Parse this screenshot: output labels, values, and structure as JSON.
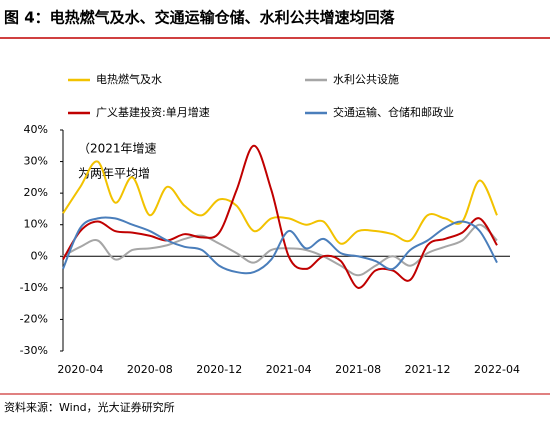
{
  "chart_data": {
    "type": "line",
    "title": "图 4：电热燃气及水、交通运输仓储、水利公共增速均回落",
    "source": "资料来源：Wind，光大证券研究所",
    "annotation": [
      "（2021年增速",
      "为两年平均增"
    ],
    "x": [
      "2020-03",
      "2020-04",
      "2020-05",
      "2020-06",
      "2020-07",
      "2020-08",
      "2020-09",
      "2020-10",
      "2020-11",
      "2020-12",
      "2021-01",
      "2021-02",
      "2021-03",
      "2021-04",
      "2021-05",
      "2021-06",
      "2021-07",
      "2021-08",
      "2021-09",
      "2021-10",
      "2021-11",
      "2021-12",
      "2022-01",
      "2022-02",
      "2022-03",
      "2022-04"
    ],
    "xticks": [
      "2020-04",
      "2020-08",
      "2020-12",
      "2021-04",
      "2021-08",
      "2021-12",
      "2022-04"
    ],
    "ylim": [
      -30,
      40
    ],
    "yticks": [
      {
        "value": -30,
        "label": "-30%"
      },
      {
        "value": -20,
        "label": "-20%"
      },
      {
        "value": -10,
        "label": "-10%"
      },
      {
        "value": 0,
        "label": "0%"
      },
      {
        "value": 10,
        "label": "10%"
      },
      {
        "value": 20,
        "label": "20%"
      },
      {
        "value": 30,
        "label": "30%"
      },
      {
        "value": 40,
        "label": "40%"
      }
    ],
    "series": [
      {
        "name": "电热燃气及水",
        "color": "#f2c200",
        "values": [
          13.6,
          22,
          30,
          17,
          25,
          13,
          22,
          16,
          13,
          18,
          16,
          8,
          12,
          12,
          10,
          11,
          4,
          8,
          8,
          7,
          5,
          13,
          12,
          11,
          24,
          13
        ]
      },
      {
        "name": "水利公共设施",
        "color": "#a6a6a6",
        "values": [
          0,
          3,
          5,
          -1,
          2,
          2.5,
          3.5,
          5.5,
          6.5,
          4,
          1,
          -2,
          2,
          2.5,
          2,
          0,
          -3,
          -6,
          -3,
          0,
          -3,
          1,
          3,
          5,
          10,
          5
        ]
      },
      {
        "name": "广义基建投资:单月增速",
        "color": "#c00000",
        "values": [
          -1,
          8,
          11,
          8,
          7.5,
          6.5,
          5,
          7,
          6,
          7.5,
          21,
          35,
          21,
          0,
          -4,
          0,
          -1.5,
          -10,
          -4.5,
          -4.5,
          -7.5,
          3.5,
          5.5,
          7.5,
          12,
          3.5
        ]
      },
      {
        "name": "交通运输、仓储和邮政业",
        "color": "#4a7ebb",
        "values": [
          -4,
          9,
          12,
          12,
          10,
          8,
          5,
          3,
          2,
          -3,
          -5,
          -5,
          -1,
          8,
          2.5,
          5.5,
          1,
          0,
          -1.5,
          -4,
          2,
          5,
          9,
          11,
          8,
          -2
        ]
      }
    ]
  }
}
